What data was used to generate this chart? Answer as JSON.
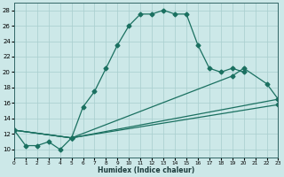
{
  "xlabel": "Humidex (Indice chaleur)",
  "background_color": "#cce8e8",
  "line_color": "#1a7060",
  "grid_color": "#a8cece",
  "xlim": [
    0,
    23
  ],
  "ylim": [
    9,
    29
  ],
  "xticks": [
    0,
    1,
    2,
    3,
    4,
    5,
    6,
    7,
    8,
    9,
    10,
    11,
    12,
    13,
    14,
    15,
    16,
    17,
    18,
    19,
    20,
    21,
    22,
    23
  ],
  "yticks": [
    10,
    12,
    14,
    16,
    18,
    20,
    22,
    24,
    26,
    28
  ],
  "curve1_x": [
    0,
    1,
    2,
    3,
    4,
    5,
    6,
    7,
    8,
    9,
    10,
    11,
    12,
    13,
    14,
    15,
    16,
    17,
    18,
    19,
    20
  ],
  "curve1_y": [
    12.5,
    10.5,
    10.5,
    11.0,
    10.0,
    11.5,
    15.5,
    17.5,
    20.5,
    23.5,
    26.0,
    27.5,
    27.5,
    28.0,
    27.5,
    27.5,
    23.5,
    20.5,
    20.0,
    20.5,
    20.0
  ],
  "line2_x": [
    0,
    5,
    19,
    20,
    22,
    23
  ],
  "line2_y": [
    12.5,
    11.5,
    19.5,
    20.5,
    18.5,
    16.5
  ],
  "line3_x": [
    0,
    5,
    23
  ],
  "line3_y": [
    12.5,
    11.5,
    16.5
  ],
  "line4_x": [
    0,
    5,
    23
  ],
  "line4_y": [
    12.5,
    11.5,
    15.8
  ]
}
